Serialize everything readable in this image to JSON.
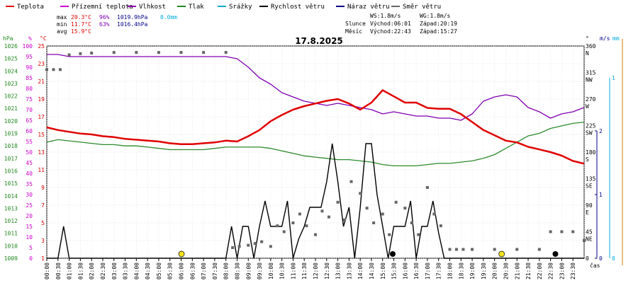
{
  "chart_data": {
    "type": "line",
    "title": "17.8.2025",
    "xlabel": "čas",
    "legend": [
      {
        "name": "Teplota",
        "color": "#dd0000"
      },
      {
        "name": "Přízemní teplota",
        "color": "#cc00cc"
      },
      {
        "name": "Vlhkost",
        "color": "#8800aa"
      },
      {
        "name": "Tlak",
        "color": "#228822"
      },
      {
        "name": "Srážky",
        "color": "#00aacc"
      },
      {
        "name": "Rychlost větru",
        "color": "#000000"
      },
      {
        "name": "Náraz větru",
        "color": "#000088"
      },
      {
        "name": "Směr větru",
        "color": "#666666"
      }
    ],
    "stats": {
      "max": {
        "label": "max",
        "temp": "20.3°C",
        "hum": "96%",
        "press": "1019.9hPa",
        "rain": "0.0mm"
      },
      "min": {
        "label": "min",
        "temp": "11.7°C",
        "hum": "63%",
        "press": "1016.4hPa"
      },
      "avg": {
        "label": "avg",
        "temp": "15.9°C"
      }
    },
    "info": {
      "ws": "WS:1.8m/s",
      "wg": "WG:1.8m/s",
      "sun_label": "Slunce",
      "sun_rise": "Východ:06:01",
      "sun_set": "Západ:20:19",
      "moon_label": "Měsíc",
      "moon_rise": "Východ:22:43",
      "moon_set": "Západ:15:27"
    },
    "axes": {
      "hpa": {
        "label": "hPa",
        "range": [
          1009,
          1026
        ],
        "ticks": [
          "1026",
          "1025",
          "1024",
          "1023",
          "1022",
          "1021",
          "1020",
          "1019",
          "1018",
          "1017",
          "1016",
          "1015",
          "1014",
          "1013",
          "1012",
          "1011",
          "1010",
          "1009"
        ]
      },
      "pct": {
        "label": "%",
        "range": [
          0,
          100
        ],
        "ticks": [
          "100",
          "95",
          "90",
          "85",
          "80",
          "75",
          "70",
          "65",
          "60",
          "55",
          "50",
          "45",
          "40",
          "35",
          "30",
          "25",
          "20",
          "15",
          "10",
          "5",
          "0"
        ]
      },
      "degc": {
        "label": "°C",
        "range": [
          1,
          25
        ],
        "ticks": [
          "25",
          "23",
          "21",
          "19",
          "17",
          "15",
          "13",
          "11",
          "9",
          "7",
          "5",
          "3",
          "1"
        ]
      },
      "dir": {
        "label": "°",
        "ticks": [
          {
            "deg": "360",
            "card": "N"
          },
          {
            "deg": "315",
            "card": "NW"
          },
          {
            "deg": "270",
            "card": "W"
          },
          {
            "deg": "225",
            "card": "SW"
          },
          {
            "deg": "180",
            "card": "S"
          },
          {
            "deg": "135",
            "card": "SE"
          },
          {
            "deg": "90",
            "card": "E"
          },
          {
            "deg": "45",
            "card": "NE"
          },
          {
            "deg": "0",
            "card": ""
          }
        ]
      },
      "ms": {
        "label": "m/s",
        "range": [
          0,
          2
        ],
        "ticks": [
          "2",
          "1",
          "0"
        ]
      },
      "mm": {
        "label": "mm",
        "range": [
          0,
          1
        ],
        "ticks": [
          "1",
          "0"
        ]
      }
    },
    "time_labels": [
      "00:00",
      "00:30",
      "01:00",
      "01:30",
      "02:00",
      "02:30",
      "03:00",
      "03:30",
      "04:00",
      "04:30",
      "05:00",
      "05:30",
      "06:00",
      "06:30",
      "07:00",
      "07:30",
      "08:00",
      "08:30",
      "09:00",
      "09:30",
      "10:00",
      "10:30",
      "11:00",
      "11:30",
      "12:00",
      "12:30",
      "13:00",
      "13:30",
      "14:00",
      "14:30",
      "15:00",
      "15:30",
      "16:00",
      "16:30",
      "17:00",
      "17:30",
      "18:00",
      "18:30",
      "19:00",
      "19:30",
      "20:00",
      "20:30",
      "21:00",
      "21:30",
      "22:00",
      "22:30",
      "23:00",
      "23:30"
    ],
    "series": [
      {
        "name": "Teplota",
        "unit": "°C",
        "x_hours": [
          0,
          0.5,
          1,
          1.5,
          2,
          2.5,
          3,
          3.5,
          4,
          4.5,
          5,
          5.5,
          6,
          6.5,
          7,
          7.5,
          8,
          8.5,
          9,
          9.5,
          10,
          10.5,
          11,
          11.5,
          12,
          12.5,
          13,
          13.5,
          14,
          14.5,
          15,
          15.5,
          16,
          16.5,
          17,
          17.5,
          18,
          18.5,
          19,
          19.5,
          20,
          20.5,
          21,
          21.5,
          22,
          22.5,
          23,
          23.5,
          24
        ],
        "values": [
          15.8,
          15.5,
          15.3,
          15.1,
          15.0,
          14.8,
          14.7,
          14.5,
          14.4,
          14.3,
          14.2,
          14.0,
          13.9,
          13.9,
          14.0,
          14.1,
          14.3,
          14.2,
          14.8,
          15.5,
          16.5,
          17.2,
          17.8,
          18.2,
          18.5,
          18.8,
          19.0,
          18.5,
          17.8,
          18.6,
          20.0,
          19.3,
          18.6,
          18.6,
          18.0,
          17.9,
          17.9,
          17.3,
          16.4,
          15.5,
          14.9,
          14.3,
          14.1,
          13.6,
          13.3,
          13.0,
          12.6,
          12.0,
          11.7
        ]
      },
      {
        "name": "Vlhkost",
        "unit": "%",
        "x_hours": [
          0,
          0.5,
          1,
          1.5,
          2,
          2.5,
          3,
          3.5,
          4,
          4.5,
          5,
          5.5,
          6,
          6.5,
          7,
          7.5,
          8,
          8.5,
          9,
          9.5,
          10,
          10.5,
          11,
          11.5,
          12,
          12.5,
          13,
          13.5,
          14,
          14.5,
          15,
          15.5,
          16,
          16.5,
          17,
          17.5,
          18,
          18.5,
          19,
          19.5,
          20,
          20.5,
          21,
          21.5,
          22,
          22.5,
          23,
          23.5,
          24
        ],
        "values": [
          96,
          96,
          95,
          95,
          95,
          95,
          95,
          95,
          95,
          95,
          95,
          95,
          95,
          95,
          95,
          95,
          95,
          94,
          90,
          85,
          82,
          78,
          76,
          74,
          73,
          72,
          73,
          72,
          71,
          70,
          68,
          69,
          68,
          67,
          67,
          66,
          66,
          65,
          68,
          74,
          76,
          77,
          76,
          71,
          69,
          66,
          68,
          69,
          71
        ]
      },
      {
        "name": "Tlak",
        "unit": "hPa",
        "x_hours": [
          0,
          0.5,
          1,
          1.5,
          2,
          2.5,
          3,
          3.5,
          4,
          4.5,
          5,
          5.5,
          6,
          6.5,
          7,
          7.5,
          8,
          8.5,
          9,
          9.5,
          10,
          10.5,
          11,
          11.5,
          12,
          12.5,
          13,
          13.5,
          14,
          14.5,
          15,
          15.5,
          16,
          16.5,
          17,
          17.5,
          18,
          18.5,
          19,
          19.5,
          20,
          20.5,
          21,
          21.5,
          22,
          22.5,
          23,
          23.5,
          24
        ],
        "values": [
          1018.3,
          1018.5,
          1018.4,
          1018.3,
          1018.2,
          1018.1,
          1018.1,
          1018.0,
          1018.0,
          1017.9,
          1017.8,
          1017.7,
          1017.7,
          1017.7,
          1017.7,
          1017.8,
          1017.9,
          1017.9,
          1017.9,
          1017.9,
          1017.8,
          1017.6,
          1017.4,
          1017.2,
          1017.1,
          1017.0,
          1016.9,
          1016.9,
          1016.8,
          1016.7,
          1016.5,
          1016.4,
          1016.4,
          1016.4,
          1016.5,
          1016.6,
          1016.6,
          1016.7,
          1016.8,
          1017.0,
          1017.3,
          1017.8,
          1018.3,
          1018.8,
          1019.0,
          1019.4,
          1019.6,
          1019.8,
          1019.9
        ]
      },
      {
        "name": "Rychlost větru",
        "unit": "m/s",
        "x_hours": [
          0,
          0.5,
          0.75,
          1,
          1.5,
          2,
          2.5,
          3,
          3.5,
          4,
          4.5,
          5,
          5.5,
          6,
          6.5,
          7,
          7.5,
          8,
          8.25,
          8.5,
          8.75,
          9,
          9.25,
          9.5,
          9.75,
          10,
          10.25,
          10.5,
          10.75,
          11,
          11.25,
          11.5,
          11.75,
          12,
          12.25,
          12.5,
          12.75,
          13,
          13.25,
          13.5,
          13.75,
          14,
          14.25,
          14.5,
          14.75,
          15,
          15.25,
          15.5,
          15.75,
          16,
          16.25,
          16.5,
          16.75,
          17,
          17.25,
          17.5,
          17.75,
          18,
          18.25,
          18.5,
          19,
          19.5,
          20,
          20.5,
          21,
          21.5,
          22,
          22.5,
          23,
          23.5,
          24
        ],
        "values": [
          0,
          0,
          0.5,
          0,
          0,
          0,
          0,
          0,
          0,
          0,
          0,
          0,
          0,
          0,
          0,
          0,
          0,
          0,
          0.5,
          0,
          0.5,
          0.5,
          0,
          0.5,
          0.9,
          0.5,
          0.5,
          0.5,
          0.9,
          0,
          0.3,
          0.5,
          0.8,
          0.8,
          0.8,
          1.2,
          1.8,
          1.2,
          0.5,
          0.8,
          0,
          0.8,
          1.8,
          1.8,
          1.0,
          0.5,
          0,
          0.5,
          0.5,
          0.5,
          0.9,
          0,
          0.5,
          0.5,
          0.9,
          0.4,
          0,
          0,
          0,
          0,
          0,
          0,
          0,
          0,
          0,
          0,
          0,
          0,
          0,
          0,
          0
        ]
      },
      {
        "name": "Směr větru",
        "unit": "°",
        "x_hours": [
          0,
          0.3,
          0.6,
          1,
          1.5,
          2,
          3,
          4,
          5,
          6,
          7,
          8,
          8.3,
          8.6,
          9,
          9.3,
          9.6,
          10,
          10.3,
          10.6,
          11,
          11.3,
          11.6,
          12,
          12.3,
          12.6,
          13,
          13.3,
          13.6,
          14,
          14.3,
          14.6,
          15,
          15.3,
          15.6,
          16,
          16.3,
          16.6,
          17,
          17.3,
          17.6,
          18,
          18.3,
          18.6,
          19,
          20,
          21,
          22,
          22.5,
          23,
          23.5,
          24
        ],
        "values": [
          320,
          320,
          320,
          345,
          347,
          348,
          349,
          349,
          349,
          349,
          349,
          349,
          18,
          20,
          22,
          25,
          28,
          20,
          55,
          45,
          60,
          75,
          55,
          40,
          80,
          70,
          95,
          65,
          130,
          110,
          85,
          60,
          75,
          40,
          95,
          85,
          60,
          40,
          120,
          75,
          55,
          15,
          15,
          15,
          15,
          15,
          15,
          15,
          45,
          45,
          45,
          30
        ]
      }
    ],
    "markers": [
      {
        "label": "sunrise",
        "time": "06:01"
      },
      {
        "label": "sunset",
        "time": "20:19"
      },
      {
        "label": "moonset",
        "time": "15:27"
      },
      {
        "label": "moonrise",
        "time": "22:43"
      }
    ]
  },
  "colors": {
    "temp": "#e00000",
    "hum": "#8000b0",
    "press": "#2c8a2c",
    "wind": "#000000",
    "dir": "#666666",
    "rain": "#00aadd",
    "gust_axis": "#000088",
    "sun": "#f0e020"
  }
}
